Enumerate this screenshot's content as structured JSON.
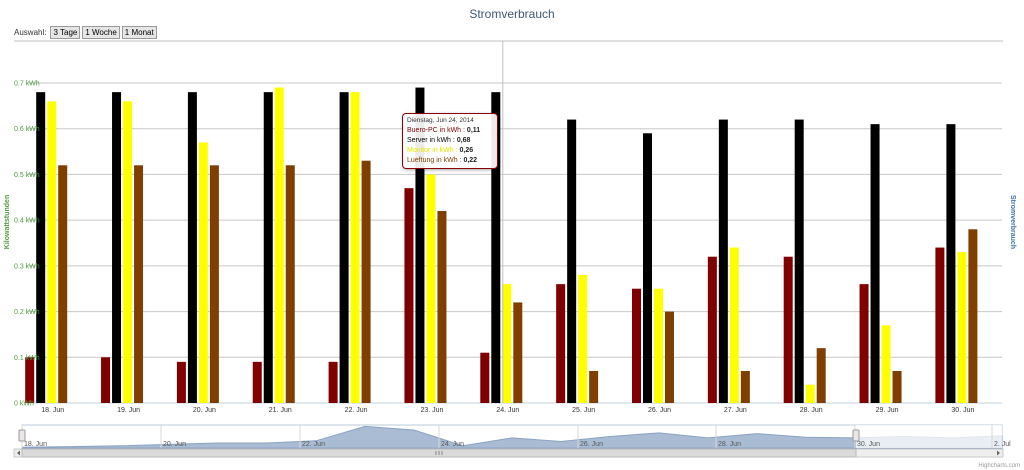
{
  "chart_data": {
    "type": "bar",
    "title": "Stromverbrauch",
    "ylabel": "Kilowattstunden",
    "ylabel_right": "Stromverbrauch",
    "ylim": [
      0,
      0.8
    ],
    "y_ticks": [
      "0 kWh",
      "0.1 kWh",
      "0.2 kWh",
      "0.3 kWh",
      "0.4 kWh",
      "0.5 kWh",
      "0.6 kWh",
      "0.7 kWh"
    ],
    "y_tick_values": [
      0,
      0.1,
      0.2,
      0.3,
      0.4,
      0.5,
      0.6,
      0.7
    ],
    "categories": [
      "18. Jun",
      "19. Jun",
      "20. Jun",
      "21. Jun",
      "22. Jun",
      "23. Jun",
      "24. Jun",
      "25. Jun",
      "26. Jun",
      "27. Jun",
      "28. Jun",
      "29. Jun",
      "30. Jun"
    ],
    "series": [
      {
        "name": "Buero-PC",
        "color": "#800000",
        "values": [
          0.1,
          0.1,
          0.09,
          0.09,
          0.09,
          0.47,
          0.11,
          0.26,
          0.25,
          0.32,
          0.32,
          0.26,
          0.34
        ]
      },
      {
        "name": "Server",
        "color": "#000000",
        "values": [
          0.68,
          0.68,
          0.68,
          0.68,
          0.68,
          0.69,
          0.68,
          0.62,
          0.59,
          0.62,
          0.62,
          0.61,
          0.61
        ]
      },
      {
        "name": "Monitor",
        "color": "#ffff00",
        "values": [
          0.66,
          0.66,
          0.57,
          0.69,
          0.68,
          0.5,
          0.26,
          0.28,
          0.25,
          0.34,
          0.04,
          0.17,
          0.33
        ]
      },
      {
        "name": "Lueftung",
        "color": "#7f3f00",
        "values": [
          0.52,
          0.52,
          0.52,
          0.52,
          0.53,
          0.42,
          0.22,
          0.07,
          0.2,
          0.07,
          0.12,
          0.07,
          0.38
        ]
      }
    ],
    "grid": true,
    "crosshair_category": "24. Jun"
  },
  "range_selector": {
    "label": "Auswahl:",
    "buttons": [
      "3 Tage",
      "1 Woche",
      "1 Monat"
    ]
  },
  "tooltip": {
    "date": "Dienstag, Jun 24, 2014",
    "rows": [
      {
        "label": "Buero-PC in kWh :",
        "value": "0,11",
        "color": "#800000"
      },
      {
        "label": "Server in kWh :",
        "value": "0,68",
        "color": "#000000"
      },
      {
        "label": "Monitor in kWh :",
        "value": "0,26",
        "color": "#e6e600"
      },
      {
        "label": "Lueftung in kWh :",
        "value": "0,22",
        "color": "#7f3f00"
      }
    ]
  },
  "navigator": {
    "labels": [
      "18. Jun",
      "20. Jun",
      "22. Jun",
      "24. Jun",
      "26. Jun",
      "28. Jun",
      "30. Jun",
      "2. Jul"
    ],
    "series_values": [
      0.01,
      0.02,
      0.03,
      0.05,
      0.07,
      0.07,
      0.1,
      0.3,
      0.25,
      0.03,
      0.14,
      0.09,
      0.16,
      0.21,
      0.14,
      0.2,
      0.15,
      0.14,
      0.16,
      0.14,
      0.17
    ]
  },
  "credits": "Highcharts.com"
}
